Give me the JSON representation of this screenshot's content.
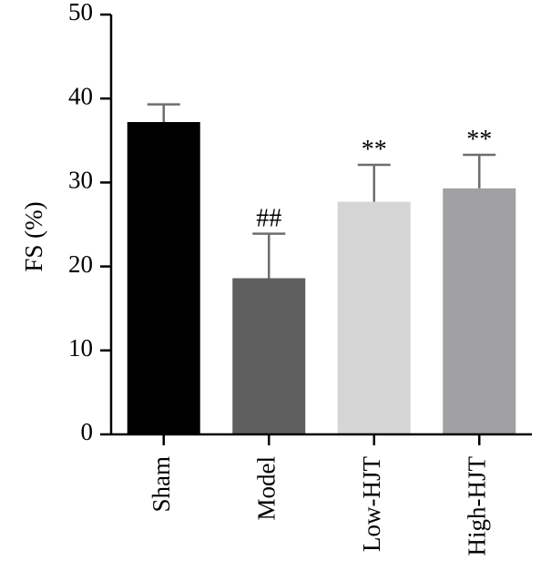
{
  "chart_data": {
    "type": "bar",
    "ylabel": "FS (%)",
    "xlabel": "",
    "ylim": [
      0,
      50
    ],
    "yticks": [
      0,
      10,
      20,
      30,
      40,
      50
    ],
    "categories": [
      "Sham",
      "Model",
      "Low-HJT",
      "High-HJT"
    ],
    "values": [
      37.2,
      18.6,
      27.7,
      29.3
    ],
    "errors": [
      2.1,
      5.3,
      4.4,
      4.0
    ],
    "annotations": [
      "",
      "##",
      "**",
      "**"
    ],
    "colors": [
      "#000000",
      "#5f5f5f",
      "#d5d5d5",
      "#a1a0a5"
    ],
    "error_color": "#6e6e6e"
  }
}
